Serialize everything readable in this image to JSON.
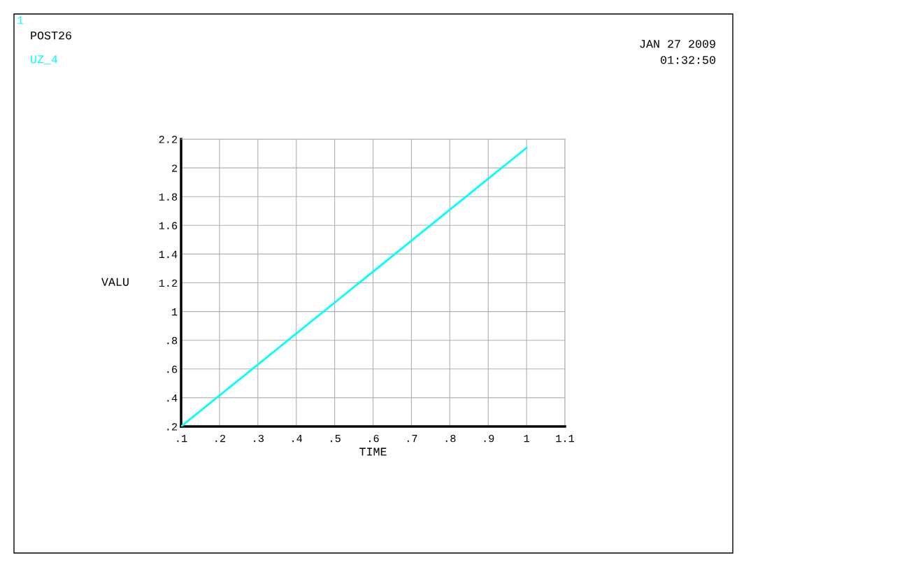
{
  "chart_data": {
    "type": "line",
    "xlabel": "TIME",
    "ylabel": "VALU",
    "annotations": [
      "1",
      "POST26",
      "JAN 27 2009",
      "01:32:50"
    ],
    "x": [
      0.1,
      1.0
    ],
    "series": [
      {
        "name": "UZ_4",
        "color": "#00ffff",
        "values": [
          0.2,
          2.14
        ]
      }
    ],
    "xlim": [
      0.1,
      1.1
    ],
    "xticks": [
      {
        "value": 0.1,
        "label": ".1"
      },
      {
        "value": 0.2,
        "label": ".2"
      },
      {
        "value": 0.3,
        "label": ".3"
      },
      {
        "value": 0.4,
        "label": ".4"
      },
      {
        "value": 0.5,
        "label": ".5"
      },
      {
        "value": 0.6,
        "label": ".6"
      },
      {
        "value": 0.7,
        "label": ".7"
      },
      {
        "value": 0.8,
        "label": ".8"
      },
      {
        "value": 0.9,
        "label": ".9"
      },
      1,
      1.1
    ],
    "ylim": [
      0.2,
      2.2
    ],
    "yticks": [
      {
        "value": 0.2,
        "label": ".2"
      },
      {
        "value": 0.4,
        "label": ".4"
      },
      {
        "value": 0.6,
        "label": ".6"
      },
      {
        "value": 0.8,
        "label": ".8"
      },
      1,
      1.2,
      1.4,
      1.6,
      1.8,
      2,
      2.2
    ],
    "grid": true,
    "line_style": "solid"
  }
}
